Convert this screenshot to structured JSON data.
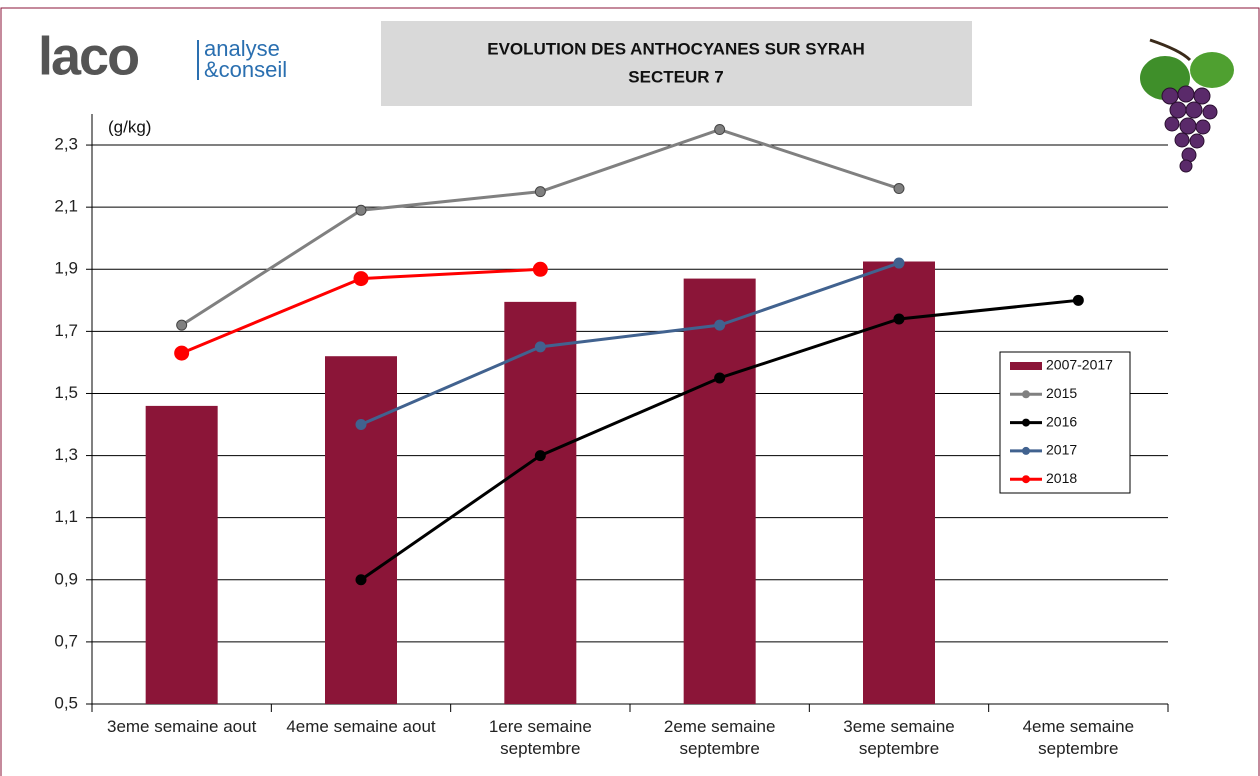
{
  "logo": {
    "name": "laco",
    "line1": "analyse",
    "line2": "&conseil"
  },
  "chart_data": {
    "type": "bar",
    "title": "EVOLUTION DES ANTHOCYANES SUR SYRAH",
    "subtitle": "SECTEUR 7",
    "y_label": "(g/kg)",
    "categories": [
      "3eme semaine aout",
      "4eme semaine aout",
      "1ere semaine septembre",
      "2eme semaine septembre",
      "3eme semaine septembre",
      "4eme semaine septembre"
    ],
    "ylim": [
      0.5,
      2.4
    ],
    "yticks": [
      {
        "value": 0.5,
        "label": "0,5"
      },
      {
        "value": 0.7,
        "label": "0,7"
      },
      {
        "value": 0.9,
        "label": "0,9"
      },
      {
        "value": 1.1,
        "label": "1,1"
      },
      {
        "value": 1.3,
        "label": "1,3"
      },
      {
        "value": 1.5,
        "label": "1,5"
      },
      {
        "value": 1.7,
        "label": "1,7"
      },
      {
        "value": 1.9,
        "label": "1,9"
      },
      {
        "value": 2.1,
        "label": "2,1"
      },
      {
        "value": 2.3,
        "label": "2,3"
      }
    ],
    "grid": true,
    "series": [
      {
        "name": "2007-2017",
        "type": "bar",
        "color": "#8b1538",
        "values": [
          1.46,
          1.62,
          1.795,
          1.87,
          1.925,
          null
        ]
      },
      {
        "name": "2015",
        "type": "line",
        "color": "#808080",
        "values": [
          1.72,
          2.09,
          2.15,
          2.35,
          2.16,
          null
        ]
      },
      {
        "name": "2016",
        "type": "line",
        "color": "#000000",
        "values": [
          null,
          0.9,
          1.3,
          1.55,
          1.74,
          1.8
        ]
      },
      {
        "name": "2017",
        "type": "line",
        "color": "#41628f",
        "values": [
          null,
          1.4,
          1.65,
          1.72,
          1.92,
          null
        ]
      },
      {
        "name": "2018",
        "type": "line",
        "color": "#ff0000",
        "values": [
          1.63,
          1.87,
          1.9,
          null,
          null,
          null
        ]
      }
    ]
  }
}
